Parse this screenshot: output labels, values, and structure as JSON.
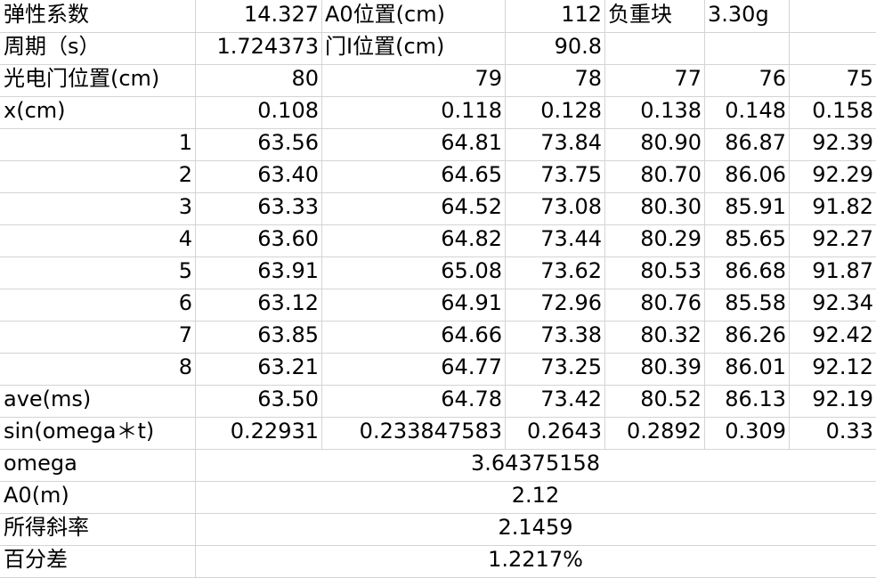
{
  "header": {
    "row1": [
      "弹性系数",
      "14.327",
      "A0位置(cm)",
      "112",
      "负重块",
      "3.30g",
      ""
    ],
    "row2": [
      "周期（s）",
      "1.724373",
      "门I位置(cm)",
      "90.8",
      "",
      "",
      ""
    ]
  },
  "table": {
    "gate_row": {
      "label": "光电门位置(cm)",
      "values": [
        "80",
        "79",
        "78",
        "77",
        "76",
        "75"
      ]
    },
    "x_row": {
      "label": "x(cm)",
      "values": [
        "0.108",
        "0.118",
        "0.128",
        "0.138",
        "0.148",
        "0.158"
      ]
    },
    "trials": [
      {
        "n": "1",
        "values": [
          "63.56",
          "64.81",
          "73.84",
          "80.90",
          "86.87",
          "92.39"
        ]
      },
      {
        "n": "2",
        "values": [
          "63.40",
          "64.65",
          "73.75",
          "80.70",
          "86.06",
          "92.29"
        ]
      },
      {
        "n": "3",
        "values": [
          "63.33",
          "64.52",
          "73.08",
          "80.30",
          "85.91",
          "91.82"
        ]
      },
      {
        "n": "4",
        "values": [
          "63.60",
          "64.82",
          "73.44",
          "80.29",
          "85.65",
          "92.27"
        ]
      },
      {
        "n": "5",
        "values": [
          "63.91",
          "65.08",
          "73.62",
          "80.53",
          "86.68",
          "91.87"
        ]
      },
      {
        "n": "6",
        "values": [
          "63.12",
          "64.91",
          "72.96",
          "80.76",
          "85.58",
          "92.34"
        ]
      },
      {
        "n": "7",
        "values": [
          "63.85",
          "64.66",
          "73.38",
          "80.32",
          "86.26",
          "92.42"
        ]
      },
      {
        "n": "8",
        "values": [
          "63.21",
          "64.77",
          "73.25",
          "80.39",
          "86.01",
          "92.12"
        ]
      }
    ],
    "ave_row": {
      "label": "ave(ms)",
      "values": [
        "63.50",
        "64.78",
        "73.42",
        "80.52",
        "86.13",
        "92.19"
      ]
    },
    "sin_row": {
      "label": "sin(omega＊t)",
      "values": [
        "0.22931",
        "0.233847583",
        "0.2643",
        "0.2892",
        "0.309",
        "0.33"
      ]
    }
  },
  "summary": [
    {
      "label": "omega",
      "value": "3.64375158"
    },
    {
      "label": "A0(m)",
      "value": "2.12"
    },
    {
      "label": "所得斜率",
      "value": "2.1459"
    },
    {
      "label": "百分差",
      "value": "1.2217%"
    }
  ]
}
